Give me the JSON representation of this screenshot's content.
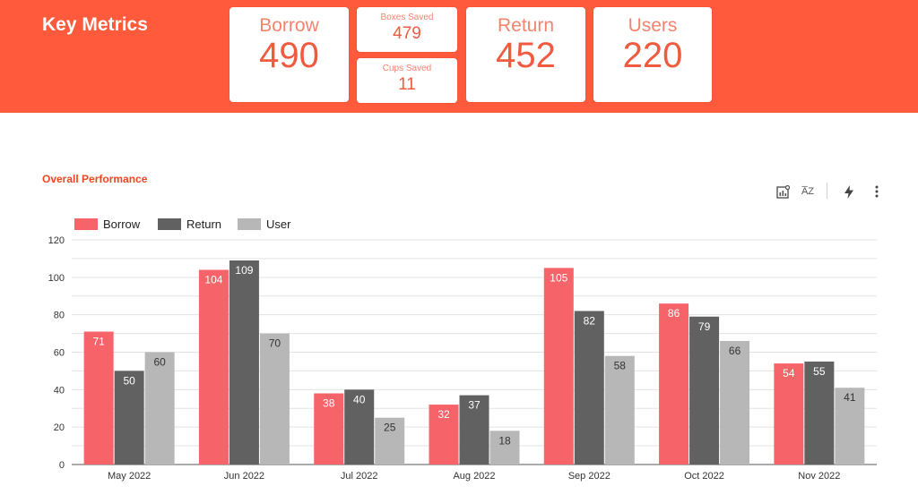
{
  "header": {
    "title": "Key Metrics"
  },
  "metrics": {
    "borrow": {
      "label": "Borrow",
      "value": "490"
    },
    "boxes_saved": {
      "label": "Boxes Saved",
      "value": "479"
    },
    "cups_saved": {
      "label": "Cups Saved",
      "value": "11"
    },
    "return": {
      "label": "Return",
      "value": "452"
    },
    "users": {
      "label": "Users",
      "value": "220"
    }
  },
  "section": {
    "title": "Overall Performance"
  },
  "toolbar": {
    "icons": [
      "insights-icon",
      "sort-az-icon",
      "bolt-icon",
      "more-vert-icon"
    ],
    "sort_glyph": "A̅Z"
  },
  "colors": {
    "header_bg": "#ff5a3c",
    "borrow": "#f6646a",
    "return": "#616161",
    "user": "#b7b7b7"
  },
  "chart_data": {
    "type": "bar",
    "title": "Overall Performance",
    "categories": [
      "May 2022",
      "Jun 2022",
      "Jul 2022",
      "Aug 2022",
      "Sep 2022",
      "Oct 2022",
      "Nov 2022"
    ],
    "series": [
      {
        "name": "Borrow",
        "values": [
          71,
          104,
          38,
          32,
          105,
          86,
          54
        ]
      },
      {
        "name": "Return",
        "values": [
          50,
          109,
          40,
          37,
          82,
          79,
          55
        ]
      },
      {
        "name": "User",
        "values": [
          60,
          70,
          25,
          18,
          58,
          66,
          41
        ]
      }
    ],
    "ylim": [
      0,
      120
    ],
    "yticks": [
      0,
      20,
      40,
      60,
      80,
      100,
      120
    ],
    "xlabel": "",
    "ylabel": "",
    "legend": "top-left",
    "grid": true
  }
}
